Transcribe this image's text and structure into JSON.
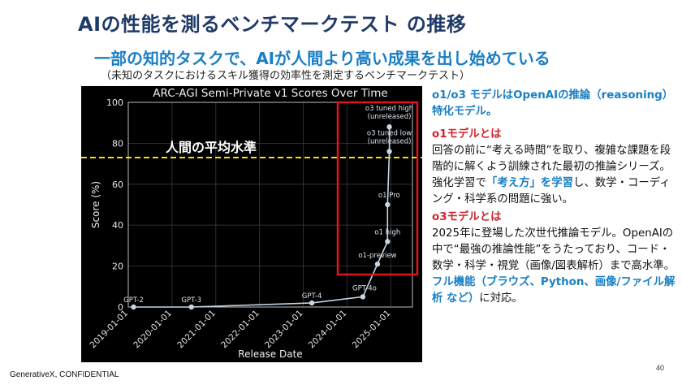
{
  "slide": {
    "title": "AIの性能を測るベンチマークテスト の推移",
    "subtitle": "一部の知的タスクで、AIが人間より高い成果を出し始めている",
    "note": "（未知のタスクにおけるスキル獲得の効率性を測定するベンチマークテスト）",
    "footer": "GenerativeX, CONFIDENTIAL",
    "page_number": "40"
  },
  "side_panel": {
    "intro_blue": "o1/o3 モデルはOpenAIの推論（reasoning）特化モデル。",
    "o1_title": "o1モデルとは",
    "o1_text_1": "回答の前に“考える時間”を取り、複雑な課題を段階的に解くよう訓練された最初の推論シリーズ。強化学習で",
    "o1_highlight": "「考え方」を学習",
    "o1_text_2": "し、数学・コーディング・科学系の問題に強い。",
    "o3_title": "o3モデルとは",
    "o3_text_1": "2025年に登場した次世代推論モデル。OpenAIの中で“最強の推論性能”をうたっており、コード・数学・科学・視覚（画像/図表解析）まで高水準。",
    "o3_highlight": "フル機能（ブラウズ、Python、画像/ファイル解析 など）",
    "o3_text_2": "に対応。"
  },
  "colors": {
    "title": "#1f3a68",
    "accent_blue": "#1a7fc4",
    "accent_red": "#d1242f",
    "chart_bg": "#000000",
    "series_line": "#c5d6e6",
    "human_line": "#f2e600",
    "highlight_box": "#e0141e"
  },
  "chart_data": {
    "type": "line",
    "title": "ARC-AGI Semi-Private v1 Scores Over Time",
    "xlabel": "Release Date",
    "ylabel": "Score (%)",
    "ylim": [
      0,
      100
    ],
    "y_ticks": [
      0,
      20,
      40,
      60,
      80,
      100
    ],
    "x_ticks": [
      "2019-01-01",
      "2020-01-01",
      "2021-01-01",
      "2022-01-01",
      "2023-01-01",
      "2024-01-01",
      "2025-01-01"
    ],
    "grid": true,
    "points": [
      {
        "label": "GPT-2",
        "date": "2019-02-14",
        "score": 0
      },
      {
        "label": "GPT-3",
        "date": "2020-06-11",
        "score": 0
      },
      {
        "label": "GPT-4",
        "date": "2023-03-14",
        "score": 2
      },
      {
        "label": "GPT-4o",
        "date": "2024-05-13",
        "score": 5
      },
      {
        "label": "o1-preview",
        "date": "2024-09-12",
        "score": 21
      },
      {
        "label": "o1 high",
        "date": "2024-12-05",
        "score": 32
      },
      {
        "label": "o1 Pro",
        "date": "2024-12-05",
        "score": 50
      },
      {
        "label": "o3 tuned low (unreleased)",
        "date": "2024-12-20",
        "score": 76
      },
      {
        "label": "o3 tuned high (unreleased)",
        "date": "2024-12-20",
        "score": 88
      }
    ],
    "reference_line": {
      "label": "人間の平均水準",
      "value": 73
    }
  }
}
